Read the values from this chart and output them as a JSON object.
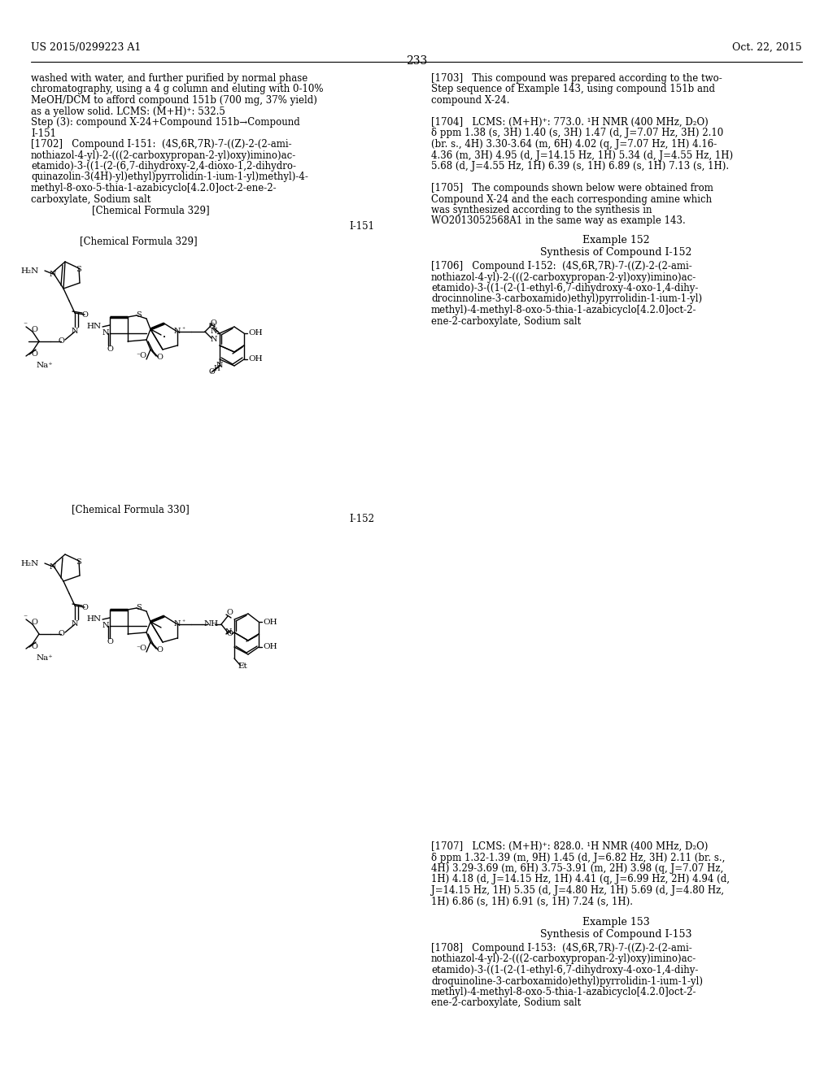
{
  "background_color": "#ffffff",
  "header_left": "US 2015/0299223 A1",
  "header_right": "Oct. 22, 2015",
  "page_number": "233",
  "left_col_lines": [
    "washed with water, and further purified by normal phase",
    "chromatography, using a 4 g column and eluting with 0-10%",
    "MeOH/DCM to afford compound 151b (700 mg, 37% yield)",
    "as a yellow solid. LCMS: (M+H)⁺: 532.5",
    "Step (3): compound X-24+Compound 151b→Compound",
    "I-151",
    "[1702]   Compound I-151:  (4S,6R,7R)-7-((Z)-2-(2-ami-",
    "nothiazol-4-yl)-2-(((2-carboxypropan-2-yl)oxy)imino)ac-",
    "etamido)-3-((1-(2-(6,7-dihydroxy-2,4-dioxo-1,2-dihydro-",
    "quinazolin-3(4H)-yl)ethyl)pyrrolidin-1-ium-1-yl)methyl)-4-",
    "methyl-8-oxo-5-thia-1-azabicyclo[4.2.0]oct-2-ene-2-",
    "carboxylate, Sodium salt",
    "                    [Chemical Formula 329]"
  ],
  "right_col_lines_top": [
    "[1703]   This compound was prepared according to the two-",
    "Step sequence of Example 143, using compound 151b and",
    "compound X-24.",
    "",
    "[1704]   LCMS: (M+H)⁺: 773.0. ¹H NMR (400 MHz, D₂O)",
    "δ ppm 1.38 (s, 3H) 1.40 (s, 3H) 1.47 (d, J=7.07 Hz, 3H) 2.10",
    "(br. s., 4H) 3.30-3.64 (m, 6H) 4.02 (q, J=7.07 Hz, 1H) 4.16-",
    "4.36 (m, 3H) 4.95 (d, J=14.15 Hz, 1H) 5.34 (d, J=4.55 Hz, 1H)",
    "5.68 (d, J=4.55 Hz, 1H) 6.39 (s, 1H) 6.89 (s, 1H) 7.13 (s, 1H).",
    "",
    "[1705]   The compounds shown below were obtained from",
    "Compound X-24 and the each corresponding amine which",
    "was synthesized according to the synthesis in",
    "WO2013052568A1 in the same way as example 143."
  ],
  "right_col_lines_1706": [
    "[1706]   Compound I-152:  (4S,6R,7R)-7-((Z)-2-(2-ami-",
    "nothiazol-4-yl)-2-(((2-carboxypropan-2-yl)oxy)imino)ac-",
    "etamido)-3-((1-(2-(1-ethyl-6,7-dihydroxy-4-oxo-1,4-dihy-",
    "drocinnoline-3-carboxamido)ethyl)pyrrolidin-1-ium-1-yl)",
    "methyl)-4-methyl-8-oxo-5-thia-1-azabicyclo[4.2.0]oct-2-",
    "ene-2-carboxylate, Sodium salt"
  ],
  "right_col_lines_1707": [
    "[1707]   LCMS: (M+H)⁺: 828.0. ¹H NMR (400 MHz, D₂O)",
    "δ ppm 1.32-1.39 (m, 9H) 1.45 (d, J=6.82 Hz, 3H) 2.11 (br. s.,",
    "4H) 3.29-3.69 (m, 6H) 3.75-3.91 (m, 2H) 3.98 (q, J=7.07 Hz,",
    "1H) 4.18 (d, J=14.15 Hz, 1H) 4.41 (q, J=6.99 Hz, 2H) 4.94 (d,",
    "J=14.15 Hz, 1H) 5.35 (d, J=4.80 Hz, 1H) 5.69 (d, J=4.80 Hz,",
    "1H) 6.86 (s, 1H) 6.91 (s, 1H) 7.24 (s, 1H)."
  ],
  "right_col_lines_1708": [
    "[1708]   Compound I-153:  (4S,6R,7R)-7-((Z)-2-(2-ami-",
    "nothiazol-4-yl)-2-(((2-carboxypropan-2-yl)oxy)imino)ac-",
    "etamido)-3-((1-(2-(1-ethyl-6,7-dihydroxy-4-oxo-1,4-dihy-",
    "droquinoline-3-carboxamido)ethyl)pyrrolidin-1-ium-1-yl)",
    "methyl)-4-methyl-8-oxo-5-thia-1-azabicyclo[4.2.0]oct-2-",
    "ene-2-carboxylate, Sodium salt"
  ]
}
